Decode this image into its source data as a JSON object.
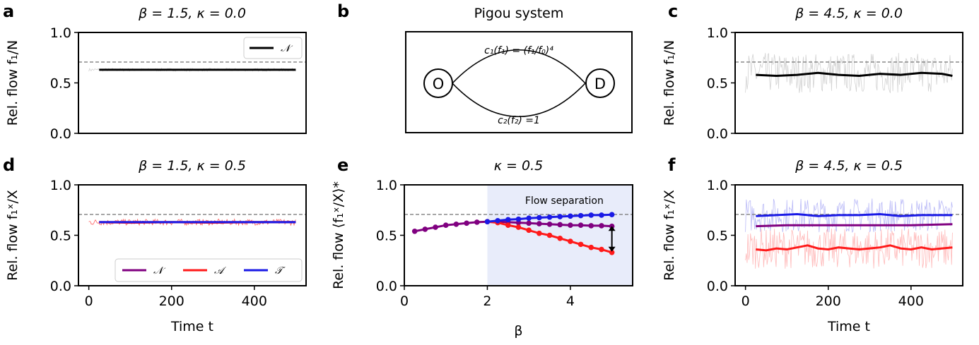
{
  "panel_labels": [
    "a",
    "b",
    "c",
    "d",
    "e",
    "f"
  ],
  "schematic": {
    "title": "Pigou system",
    "origin": "O",
    "destination": "D",
    "cost_top": "c₁(f₁) = (f₁/f₀)⁴",
    "cost_bottom": "c₂(f₂) =1"
  },
  "colors": {
    "N": "#800080",
    "A": "#ff1a1a",
    "T": "#1a1ae6",
    "N_single": "#000000",
    "raw_gray": "#bfbfbf",
    "shade": "#e8ecfa",
    "ref_line": "#7f7f7f"
  },
  "chart_data": [
    {
      "id": "a",
      "type": "line",
      "title": "β = 1.5, κ = 0.0",
      "xlabel": "",
      "ylabel": "Rel. flow f₁/N",
      "xlim": [
        -25,
        525
      ],
      "ylim": [
        0,
        1
      ],
      "xticks": [],
      "yticks": [
        0.0,
        0.5,
        1.0
      ],
      "ytick_labels": [
        "0.0",
        "0.5",
        "1.0"
      ],
      "reference_line": 0.707,
      "legend": {
        "position": "top-right",
        "entries": [
          "𝒩"
        ]
      },
      "raw_noise": {
        "x0": 0,
        "x1": 500,
        "center": 0.63,
        "amplitude": 0.015,
        "color_key": "raw_gray"
      },
      "series": [
        {
          "name": "𝒩",
          "color_key": "N_single",
          "x": [
            25,
            100,
            200,
            300,
            400,
            500
          ],
          "y": [
            0.63,
            0.63,
            0.63,
            0.63,
            0.63,
            0.63
          ]
        }
      ]
    },
    {
      "id": "c",
      "type": "line",
      "title": "β = 4.5, κ = 0.0",
      "xlabel": "",
      "ylabel": "Rel. flow f₁/N",
      "xlim": [
        -25,
        525
      ],
      "ylim": [
        0,
        1
      ],
      "xticks": [],
      "yticks": [
        0.0,
        0.5,
        1.0
      ],
      "ytick_labels": [
        "0.0",
        "0.5",
        "1.0"
      ],
      "reference_line": 0.707,
      "raw_noise": {
        "x0": 0,
        "x1": 500,
        "center": 0.6,
        "amplitude": 0.2,
        "color_key": "raw_gray"
      },
      "series": [
        {
          "name": "",
          "color_key": "N_single",
          "x": [
            25,
            75,
            125,
            175,
            225,
            275,
            325,
            375,
            425,
            475,
            500
          ],
          "y": [
            0.58,
            0.57,
            0.58,
            0.6,
            0.58,
            0.57,
            0.59,
            0.58,
            0.6,
            0.59,
            0.57
          ]
        }
      ]
    },
    {
      "id": "d",
      "type": "line",
      "title": "β = 1.5, κ = 0.5",
      "xlabel": "Time t",
      "ylabel": "Rel. flow f₁ˣ/X",
      "xlim": [
        -25,
        525
      ],
      "ylim": [
        0,
        1
      ],
      "xticks": [
        0,
        200,
        400
      ],
      "xtick_labels": [
        "0",
        "200",
        "400"
      ],
      "yticks": [
        0.0,
        0.5,
        1.0
      ],
      "ytick_labels": [
        "0.0",
        "0.5",
        "1.0"
      ],
      "reference_line": 0.707,
      "legend": {
        "position": "bottom-right",
        "entries": [
          "𝒩",
          "𝒜",
          "𝒯"
        ]
      },
      "raw_noise": {
        "x0": 0,
        "x1": 500,
        "center": 0.63,
        "amplitude": 0.03,
        "color_key": "A"
      },
      "series": [
        {
          "name": "𝒩",
          "color_key": "N",
          "x": [
            25,
            500
          ],
          "y": [
            0.63,
            0.63
          ]
        },
        {
          "name": "𝒜",
          "color_key": "A",
          "x": [
            25,
            100,
            200,
            300,
            400,
            500
          ],
          "y": [
            0.63,
            0.625,
            0.63,
            0.625,
            0.63,
            0.63
          ]
        },
        {
          "name": "𝒯",
          "color_key": "T",
          "x": [
            25,
            100,
            200,
            300,
            400,
            500
          ],
          "y": [
            0.63,
            0.63,
            0.63,
            0.63,
            0.63,
            0.63
          ]
        }
      ]
    },
    {
      "id": "e",
      "type": "line",
      "title": "κ = 0.5",
      "xlabel": "β",
      "ylabel": "Rel. flow ⟨f₁ˣ/X⟩*",
      "xlim": [
        0,
        5.5
      ],
      "ylim": [
        0,
        1
      ],
      "xticks": [
        0,
        2,
        4
      ],
      "xtick_labels": [
        "0",
        "2",
        "4"
      ],
      "yticks": [
        0.0,
        0.5,
        1.0
      ],
      "ytick_labels": [
        "0.0",
        "0.5",
        "1.0"
      ],
      "reference_line": 0.707,
      "shaded_region": {
        "x0": 2,
        "x1": 5.5,
        "label": "Flow separation"
      },
      "arrow": {
        "x": 5,
        "y0": 0.6,
        "y1": 0.33
      },
      "series": [
        {
          "name": "𝒩",
          "color_key": "N",
          "x": [
            0.25,
            0.5,
            0.75,
            1,
            1.25,
            1.5,
            1.75,
            2,
            2.25,
            2.5,
            2.75,
            3,
            3.25,
            3.5,
            3.75,
            4,
            4.25,
            4.5,
            4.75,
            5
          ],
          "y": [
            0.54,
            0.56,
            0.58,
            0.6,
            0.61,
            0.62,
            0.63,
            0.635,
            0.635,
            0.63,
            0.625,
            0.62,
            0.615,
            0.61,
            0.605,
            0.6,
            0.6,
            0.595,
            0.595,
            0.59
          ]
        },
        {
          "name": "𝒜",
          "color_key": "A",
          "x": [
            2,
            2.25,
            2.5,
            2.75,
            3,
            3.25,
            3.5,
            3.75,
            4,
            4.25,
            4.5,
            4.75,
            5
          ],
          "y": [
            0.635,
            0.625,
            0.6,
            0.58,
            0.55,
            0.52,
            0.5,
            0.47,
            0.44,
            0.41,
            0.38,
            0.36,
            0.33
          ]
        },
        {
          "name": "𝒯",
          "color_key": "T",
          "x": [
            2,
            2.25,
            2.5,
            2.75,
            3,
            3.25,
            3.5,
            3.75,
            4,
            4.25,
            4.5,
            4.75,
            5
          ],
          "y": [
            0.635,
            0.645,
            0.655,
            0.66,
            0.67,
            0.675,
            0.68,
            0.685,
            0.69,
            0.695,
            0.7,
            0.7,
            0.705
          ]
        }
      ]
    },
    {
      "id": "f",
      "type": "line",
      "title": "β = 4.5, κ = 0.5",
      "xlabel": "Time t",
      "ylabel": "Rel. flow f₁ˣ/X",
      "xlim": [
        -25,
        525
      ],
      "ylim": [
        0,
        1
      ],
      "xticks": [
        0,
        200,
        400
      ],
      "xtick_labels": [
        "0",
        "200",
        "400"
      ],
      "yticks": [
        0.0,
        0.5,
        1.0
      ],
      "ytick_labels": [
        "0.0",
        "0.5",
        "1.0"
      ],
      "reference_line": 0.707,
      "raw_bands": [
        {
          "color_key": "T",
          "center": 0.7,
          "amplitude": 0.17
        },
        {
          "color_key": "A",
          "center": 0.37,
          "amplitude": 0.2
        }
      ],
      "series": [
        {
          "name": "𝒩",
          "color_key": "N",
          "x": [
            25,
            100,
            200,
            300,
            400,
            500
          ],
          "y": [
            0.59,
            0.6,
            0.6,
            0.6,
            0.6,
            0.61
          ]
        },
        {
          "name": "𝒜",
          "color_key": "A",
          "x": [
            25,
            50,
            75,
            100,
            125,
            150,
            175,
            200,
            225,
            250,
            275,
            300,
            325,
            350,
            375,
            400,
            425,
            450,
            475,
            500
          ],
          "y": [
            0.36,
            0.35,
            0.37,
            0.36,
            0.38,
            0.4,
            0.37,
            0.36,
            0.38,
            0.37,
            0.36,
            0.37,
            0.38,
            0.4,
            0.37,
            0.36,
            0.38,
            0.36,
            0.37,
            0.38
          ]
        },
        {
          "name": "𝒯",
          "color_key": "T",
          "x": [
            25,
            75,
            125,
            175,
            225,
            275,
            325,
            375,
            425,
            475,
            500
          ],
          "y": [
            0.69,
            0.7,
            0.71,
            0.69,
            0.7,
            0.7,
            0.71,
            0.69,
            0.7,
            0.7,
            0.7
          ]
        }
      ]
    }
  ]
}
